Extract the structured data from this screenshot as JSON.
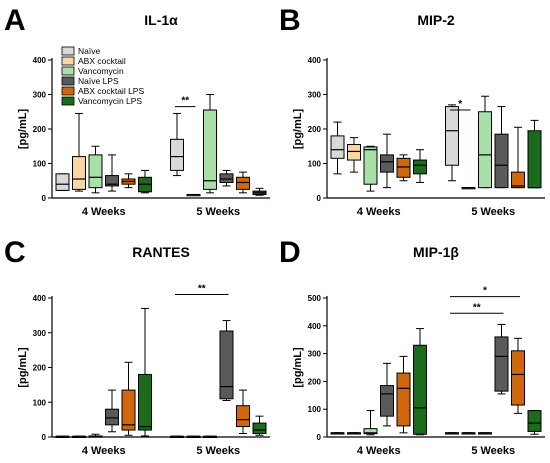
{
  "colors": [
    "#d9d9d9",
    "#fad6a5",
    "#a8e0a8",
    "#5a5a5a",
    "#d0660e",
    "#1c6b1c"
  ],
  "legend": [
    "Naïve",
    "ABX cocktail",
    "Vancomycin",
    "Naïve LPS",
    "ABX cocktail LPS",
    "Vancomycin LPS"
  ],
  "chart_data": [
    {
      "type": "box",
      "panel": "A",
      "title": "IL-1α",
      "ylabel": "[pg/mL]",
      "ylim": [
        0,
        400
      ],
      "yticks": [
        0,
        100,
        200,
        300,
        400
      ],
      "groups": [
        "4 Weeks",
        "5 Weeks"
      ],
      "show_legend": true,
      "boxes": [
        {
          "group": 0,
          "series": 0,
          "min": 22,
          "q1": 22,
          "median": 40,
          "q3": 70,
          "max": 70
        },
        {
          "group": 0,
          "series": 1,
          "min": 20,
          "q1": 25,
          "median": 55,
          "q3": 120,
          "max": 245
        },
        {
          "group": 0,
          "series": 2,
          "min": 15,
          "q1": 30,
          "median": 60,
          "q3": 125,
          "max": 150
        },
        {
          "group": 0,
          "series": 3,
          "min": 20,
          "q1": 35,
          "median": 40,
          "q3": 65,
          "max": 125
        },
        {
          "group": 0,
          "series": 4,
          "min": 30,
          "q1": 40,
          "median": 48,
          "q3": 55,
          "max": 70
        },
        {
          "group": 0,
          "series": 5,
          "min": 15,
          "q1": 18,
          "median": 40,
          "q3": 60,
          "max": 80
        },
        {
          "group": 1,
          "series": 0,
          "min": 65,
          "q1": 80,
          "median": 120,
          "q3": 170,
          "max": 245
        },
        {
          "group": 1,
          "series": 1,
          "min": 10,
          "q1": 10,
          "median": 10,
          "q3": 10,
          "max": 10
        },
        {
          "group": 1,
          "series": 2,
          "min": 15,
          "q1": 25,
          "median": 50,
          "q3": 255,
          "max": 300
        },
        {
          "group": 1,
          "series": 3,
          "min": 35,
          "q1": 45,
          "median": 55,
          "q3": 70,
          "max": 80
        },
        {
          "group": 1,
          "series": 4,
          "min": 15,
          "q1": 25,
          "median": 45,
          "q3": 60,
          "max": 75
        },
        {
          "group": 1,
          "series": 5,
          "min": 8,
          "q1": 10,
          "median": 15,
          "q3": 20,
          "max": 28
        }
      ],
      "significance": [
        {
          "group": 1,
          "from": 0,
          "to": 1,
          "label": "**",
          "y": 265
        }
      ]
    },
    {
      "type": "box",
      "panel": "B",
      "title": "MIP-2",
      "ylabel": "[pg/mL]",
      "ylim": [
        0,
        400
      ],
      "yticks": [
        0,
        100,
        200,
        300,
        400
      ],
      "groups": [
        "4 Weeks",
        "5 Weeks"
      ],
      "show_legend": false,
      "boxes": [
        {
          "group": 0,
          "series": 0,
          "min": 70,
          "q1": 115,
          "median": 140,
          "q3": 180,
          "max": 220
        },
        {
          "group": 0,
          "series": 1,
          "min": 75,
          "q1": 110,
          "median": 135,
          "q3": 155,
          "max": 175
        },
        {
          "group": 0,
          "series": 2,
          "min": 20,
          "q1": 40,
          "median": 140,
          "q3": 148,
          "max": 150
        },
        {
          "group": 0,
          "series": 3,
          "min": 30,
          "q1": 75,
          "median": 105,
          "q3": 125,
          "max": 185
        },
        {
          "group": 0,
          "series": 4,
          "min": 50,
          "q1": 60,
          "median": 90,
          "q3": 115,
          "max": 125
        },
        {
          "group": 0,
          "series": 5,
          "min": 45,
          "q1": 70,
          "median": 95,
          "q3": 110,
          "max": 140
        },
        {
          "group": 1,
          "series": 0,
          "min": 50,
          "q1": 95,
          "median": 195,
          "q3": 265,
          "max": 270
        },
        {
          "group": 1,
          "series": 1,
          "min": 30,
          "q1": 30,
          "median": 30,
          "q3": 30,
          "max": 30
        },
        {
          "group": 1,
          "series": 2,
          "min": 30,
          "q1": 30,
          "median": 125,
          "q3": 250,
          "max": 295
        },
        {
          "group": 1,
          "series": 3,
          "min": 30,
          "q1": 30,
          "median": 95,
          "q3": 185,
          "max": 265
        },
        {
          "group": 1,
          "series": 4,
          "min": 30,
          "q1": 30,
          "median": 35,
          "q3": 75,
          "max": 205
        },
        {
          "group": 1,
          "series": 5,
          "min": 30,
          "q1": 30,
          "median": 30,
          "q3": 195,
          "max": 225
        }
      ],
      "significance": [
        {
          "group": 1,
          "from": 0,
          "to": 1,
          "label": "*",
          "y": 255
        }
      ]
    },
    {
      "type": "box",
      "panel": "C",
      "title": "RANTES",
      "ylabel": "[pg/mL]",
      "ylim": [
        0,
        400
      ],
      "yticks": [
        0,
        100,
        200,
        300,
        400
      ],
      "groups": [
        "4 Weeks",
        "5 Weeks"
      ],
      "show_legend": false,
      "boxes": [
        {
          "group": 0,
          "series": 0,
          "min": 2,
          "q1": 2,
          "median": 2,
          "q3": 2,
          "max": 2
        },
        {
          "group": 0,
          "series": 1,
          "min": 2,
          "q1": 2,
          "median": 2,
          "q3": 2,
          "max": 2
        },
        {
          "group": 0,
          "series": 2,
          "min": 0,
          "q1": 2,
          "median": 2,
          "q3": 3,
          "max": 8
        },
        {
          "group": 0,
          "series": 3,
          "min": 15,
          "q1": 35,
          "median": 55,
          "q3": 80,
          "max": 135
        },
        {
          "group": 0,
          "series": 4,
          "min": 5,
          "q1": 20,
          "median": 35,
          "q3": 135,
          "max": 215
        },
        {
          "group": 0,
          "series": 5,
          "min": 3,
          "q1": 20,
          "median": 30,
          "q3": 180,
          "max": 370
        },
        {
          "group": 1,
          "series": 0,
          "min": 2,
          "q1": 2,
          "median": 2,
          "q3": 2,
          "max": 2
        },
        {
          "group": 1,
          "series": 1,
          "min": 2,
          "q1": 2,
          "median": 2,
          "q3": 2,
          "max": 2
        },
        {
          "group": 1,
          "series": 2,
          "min": 2,
          "q1": 2,
          "median": 2,
          "q3": 2,
          "max": 2
        },
        {
          "group": 1,
          "series": 3,
          "min": 105,
          "q1": 110,
          "median": 145,
          "q3": 305,
          "max": 335
        },
        {
          "group": 1,
          "series": 4,
          "min": 10,
          "q1": 30,
          "median": 50,
          "q3": 90,
          "max": 135
        },
        {
          "group": 1,
          "series": 5,
          "min": 5,
          "q1": 10,
          "median": 20,
          "q3": 40,
          "max": 60
        }
      ],
      "significance": [
        {
          "group": 1,
          "from": 0,
          "to": 3,
          "label": "**",
          "y": 410
        }
      ]
    },
    {
      "type": "box",
      "panel": "D",
      "title": "MIP-1β",
      "ylabel": "[pg/mL]",
      "ylim": [
        0,
        500
      ],
      "yticks": [
        0,
        100,
        200,
        300,
        400,
        500
      ],
      "groups": [
        "4 Weeks",
        "5 Weeks"
      ],
      "show_legend": false,
      "boxes": [
        {
          "group": 0,
          "series": 0,
          "min": 15,
          "q1": 15,
          "median": 15,
          "q3": 15,
          "max": 15
        },
        {
          "group": 0,
          "series": 1,
          "min": 15,
          "q1": 15,
          "median": 15,
          "q3": 15,
          "max": 15
        },
        {
          "group": 0,
          "series": 2,
          "min": 8,
          "q1": 12,
          "median": 15,
          "q3": 30,
          "max": 95
        },
        {
          "group": 0,
          "series": 3,
          "min": 40,
          "q1": 75,
          "median": 155,
          "q3": 185,
          "max": 265
        },
        {
          "group": 0,
          "series": 4,
          "min": 15,
          "q1": 40,
          "median": 175,
          "q3": 230,
          "max": 290
        },
        {
          "group": 0,
          "series": 5,
          "min": 8,
          "q1": 10,
          "median": 105,
          "q3": 330,
          "max": 390
        },
        {
          "group": 1,
          "series": 0,
          "min": 15,
          "q1": 15,
          "median": 15,
          "q3": 15,
          "max": 15
        },
        {
          "group": 1,
          "series": 1,
          "min": 15,
          "q1": 15,
          "median": 15,
          "q3": 15,
          "max": 15
        },
        {
          "group": 1,
          "series": 2,
          "min": 15,
          "q1": 15,
          "median": 15,
          "q3": 15,
          "max": 15
        },
        {
          "group": 1,
          "series": 3,
          "min": 155,
          "q1": 165,
          "median": 290,
          "q3": 360,
          "max": 405
        },
        {
          "group": 1,
          "series": 4,
          "min": 85,
          "q1": 115,
          "median": 225,
          "q3": 310,
          "max": 355
        },
        {
          "group": 1,
          "series": 5,
          "min": 10,
          "q1": 20,
          "median": 50,
          "q3": 95,
          "max": 95
        }
      ],
      "significance": [
        {
          "group": 1,
          "from": 0,
          "to": 3,
          "label": "**",
          "y": 445
        },
        {
          "group": 1,
          "from": 0,
          "to": 4,
          "label": "*",
          "y": 505
        }
      ]
    }
  ]
}
